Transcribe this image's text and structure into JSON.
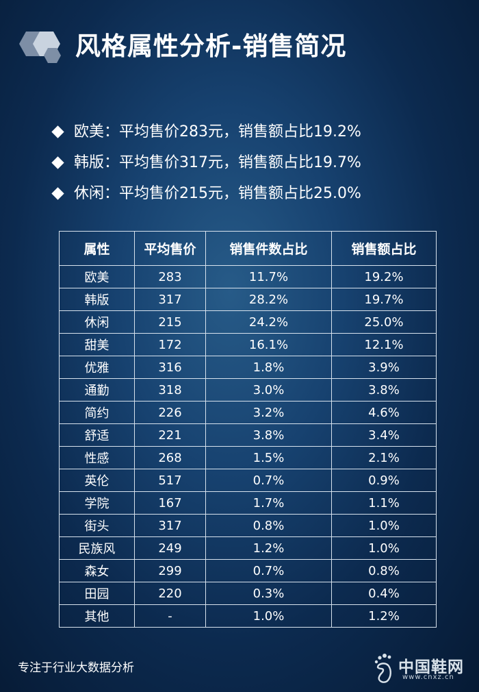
{
  "title": "风格属性分析-销售简况",
  "bullets": [
    "欧美：平均售价283元，销售额占比19.2%",
    "韩版：平均售价317元，销售额占比19.7%",
    "休闲：平均售价215元，销售额占比25.0%"
  ],
  "table": {
    "headers": [
      "属性",
      "平均售价",
      "销售件数占比",
      "销售额占比"
    ],
    "rows": [
      [
        "欧美",
        "283",
        "11.7%",
        "19.2%"
      ],
      [
        "韩版",
        "317",
        "28.2%",
        "19.7%"
      ],
      [
        "休闲",
        "215",
        "24.2%",
        "25.0%"
      ],
      [
        "甜美",
        "172",
        "16.1%",
        "12.1%"
      ],
      [
        "优雅",
        "316",
        "1.8%",
        "3.9%"
      ],
      [
        "通勤",
        "318",
        "3.0%",
        "3.8%"
      ],
      [
        "简约",
        "226",
        "3.2%",
        "4.6%"
      ],
      [
        "舒适",
        "221",
        "3.8%",
        "3.4%"
      ],
      [
        "性感",
        "268",
        "1.5%",
        "2.1%"
      ],
      [
        "英伦",
        "517",
        "0.7%",
        "0.9%"
      ],
      [
        "学院",
        "167",
        "1.7%",
        "1.1%"
      ],
      [
        "街头",
        "317",
        "0.8%",
        "1.0%"
      ],
      [
        "民族风",
        "249",
        "1.2%",
        "1.0%"
      ],
      [
        "森女",
        "299",
        "0.7%",
        "0.8%"
      ],
      [
        "田园",
        "220",
        "0.3%",
        "0.4%"
      ],
      [
        "其他",
        "-",
        "1.0%",
        "1.2%"
      ]
    ]
  },
  "footer": "专注于行业大数据分析",
  "brand": {
    "name": "中国鞋网",
    "url": "www.cnxz.cn"
  },
  "colors": {
    "background": "#0f3560",
    "text": "#ffffff",
    "table_border": "#d8e3ee",
    "hexagon": "#c9d3df"
  },
  "icons": [
    "hexagon-logo-icon",
    "diamond-bullet-icon",
    "shoe-logo-icon"
  ]
}
